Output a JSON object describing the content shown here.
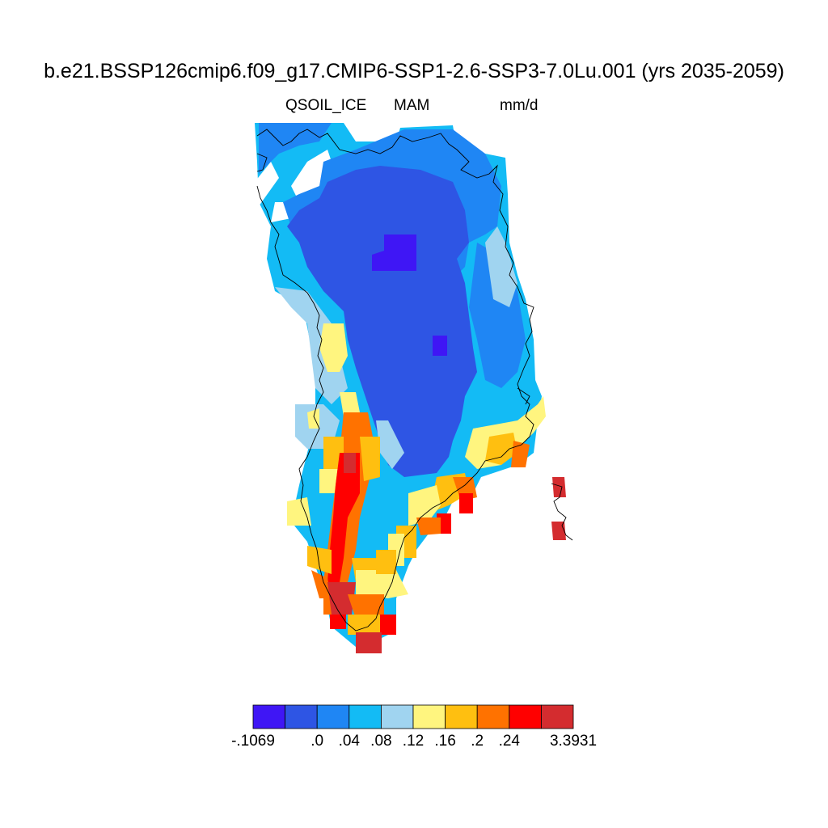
{
  "title": "b.e21.BSSP126cmip6.f09_g17.CMIP6-SSP1-2.6-SSP3-7.0Lu.001 (yrs 2035-2059)",
  "subtitle": {
    "variable": "QSOIL_ICE",
    "season": "MAM",
    "units": "mm/d"
  },
  "colorbar": {
    "colors": [
      "#3f16f5",
      "#2e55e4",
      "#1f86f4",
      "#13bbf5",
      "#a0d4f0",
      "#fff57f",
      "#ffbf10",
      "#ff7200",
      "#ff0000",
      "#d42c2f"
    ],
    "labels": [
      "-.1069",
      ".0",
      ".04",
      ".08",
      ".12",
      ".16",
      ".2",
      ".24",
      "3.3931"
    ]
  }
}
